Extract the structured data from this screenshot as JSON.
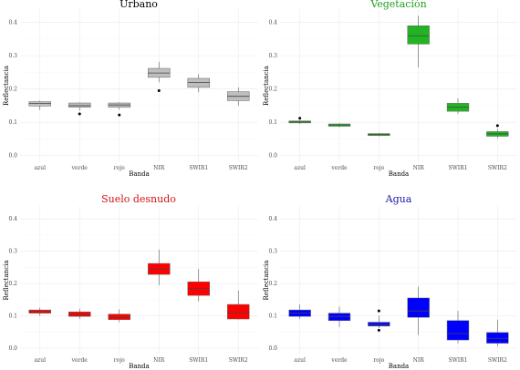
{
  "chart_data": [
    {
      "type": "box",
      "title": "Urbano",
      "title_color": "#000000",
      "fill": "#bebebe",
      "xlabel": "Banda",
      "ylabel": "Reflectancia",
      "ylim": [
        -0.02,
        0.44
      ],
      "yticks": [
        "0.0",
        "0.1",
        "0.2",
        "0.3",
        "0.4"
      ],
      "categories": [
        "azul",
        "verde",
        "rojo",
        "NIR",
        "SWIR1",
        "SWIR2"
      ],
      "boxes": [
        {
          "q1": 0.149,
          "median": 0.157,
          "q3": 0.162,
          "whisker_low": 0.137,
          "whisker_high": 0.165,
          "outliers": []
        },
        {
          "q1": 0.145,
          "median": 0.15,
          "q3": 0.158,
          "whisker_low": 0.135,
          "whisker_high": 0.16,
          "outliers": [
            0.125
          ]
        },
        {
          "q1": 0.145,
          "median": 0.152,
          "q3": 0.158,
          "whisker_low": 0.138,
          "whisker_high": 0.16,
          "outliers": [
            0.122
          ]
        },
        {
          "q1": 0.235,
          "median": 0.248,
          "q3": 0.262,
          "whisker_low": 0.22,
          "whisker_high": 0.282,
          "outliers": [
            0.195
          ]
        },
        {
          "q1": 0.205,
          "median": 0.22,
          "q3": 0.232,
          "whisker_low": 0.19,
          "whisker_high": 0.245,
          "outliers": []
        },
        {
          "q1": 0.165,
          "median": 0.178,
          "q3": 0.192,
          "whisker_low": 0.15,
          "whisker_high": 0.205,
          "outliers": []
        }
      ]
    },
    {
      "type": "box",
      "title": "Vegetación",
      "title_color": "#1f9e1f",
      "fill": "#22b422",
      "xlabel": "Banda",
      "ylabel": "Reflectancia",
      "ylim": [
        -0.02,
        0.44
      ],
      "yticks": [
        "0.0",
        "0.1",
        "0.2",
        "0.3",
        "0.4"
      ],
      "categories": [
        "azul",
        "verde",
        "rojo",
        "NIR",
        "SWIR1",
        "SWIR2"
      ],
      "boxes": [
        {
          "q1": 0.098,
          "median": 0.101,
          "q3": 0.104,
          "whisker_low": 0.095,
          "whisker_high": 0.106,
          "outliers": [
            0.112
          ]
        },
        {
          "q1": 0.088,
          "median": 0.092,
          "q3": 0.095,
          "whisker_low": 0.085,
          "whisker_high": 0.097,
          "outliers": []
        },
        {
          "q1": 0.06,
          "median": 0.063,
          "q3": 0.066,
          "whisker_low": 0.058,
          "whisker_high": 0.068,
          "outliers": []
        },
        {
          "q1": 0.335,
          "median": 0.36,
          "q3": 0.39,
          "whisker_low": 0.265,
          "whisker_high": 0.42,
          "outliers": []
        },
        {
          "q1": 0.133,
          "median": 0.145,
          "q3": 0.157,
          "whisker_low": 0.125,
          "whisker_high": 0.172,
          "outliers": []
        },
        {
          "q1": 0.058,
          "median": 0.065,
          "q3": 0.072,
          "whisker_low": 0.052,
          "whisker_high": 0.08,
          "outliers": [
            0.09
          ]
        }
      ]
    },
    {
      "type": "box",
      "title": "Suelo desnudo",
      "title_color": "#cc1414",
      "fill": "#ff0000",
      "xlabel": "Banda",
      "ylabel": "Reflectancia",
      "ylim": [
        -0.02,
        0.44
      ],
      "yticks": [
        "0.0",
        "0.1",
        "0.2",
        "0.3",
        "0.4"
      ],
      "categories": [
        "azul",
        "verde",
        "rojo",
        "NIR",
        "SWIR1",
        "SWIR2"
      ],
      "boxes": [
        {
          "q1": 0.108,
          "median": 0.113,
          "q3": 0.118,
          "whisker_low": 0.1,
          "whisker_high": 0.125,
          "outliers": []
        },
        {
          "q1": 0.098,
          "median": 0.104,
          "q3": 0.112,
          "whisker_low": 0.09,
          "whisker_high": 0.122,
          "outliers": []
        },
        {
          "q1": 0.088,
          "median": 0.095,
          "q3": 0.105,
          "whisker_low": 0.08,
          "whisker_high": 0.12,
          "outliers": []
        },
        {
          "q1": 0.228,
          "median": 0.245,
          "q3": 0.262,
          "whisker_low": 0.195,
          "whisker_high": 0.305,
          "outliers": []
        },
        {
          "q1": 0.163,
          "median": 0.185,
          "q3": 0.205,
          "whisker_low": 0.145,
          "whisker_high": 0.245,
          "outliers": []
        },
        {
          "q1": 0.09,
          "median": 0.11,
          "q3": 0.135,
          "whisker_low": 0.088,
          "whisker_high": 0.178,
          "outliers": []
        }
      ]
    },
    {
      "type": "box",
      "title": "Agua",
      "title_color": "#1a1aa6",
      "fill": "#0000ff",
      "xlabel": "Banda",
      "ylabel": "Reflectancia",
      "ylim": [
        -0.02,
        0.44
      ],
      "yticks": [
        "0.0",
        "0.1",
        "0.2",
        "0.3",
        "0.4"
      ],
      "categories": [
        "azul",
        "verde",
        "rojo",
        "NIR",
        "SWIR1",
        "SWIR2"
      ],
      "boxes": [
        {
          "q1": 0.098,
          "median": 0.108,
          "q3": 0.118,
          "whisker_low": 0.09,
          "whisker_high": 0.135,
          "outliers": []
        },
        {
          "q1": 0.085,
          "median": 0.098,
          "q3": 0.108,
          "whisker_low": 0.065,
          "whisker_high": 0.128,
          "outliers": []
        },
        {
          "q1": 0.068,
          "median": 0.073,
          "q3": 0.08,
          "whisker_low": 0.062,
          "whisker_high": 0.1,
          "outliers": [
            0.055,
            0.115
          ]
        },
        {
          "q1": 0.095,
          "median": 0.115,
          "q3": 0.155,
          "whisker_low": 0.04,
          "whisker_high": 0.19,
          "outliers": []
        },
        {
          "q1": 0.025,
          "median": 0.045,
          "q3": 0.085,
          "whisker_low": 0.015,
          "whisker_high": 0.115,
          "outliers": []
        },
        {
          "q1": 0.015,
          "median": 0.03,
          "q3": 0.048,
          "whisker_low": 0.005,
          "whisker_high": 0.088,
          "outliers": []
        }
      ]
    }
  ]
}
